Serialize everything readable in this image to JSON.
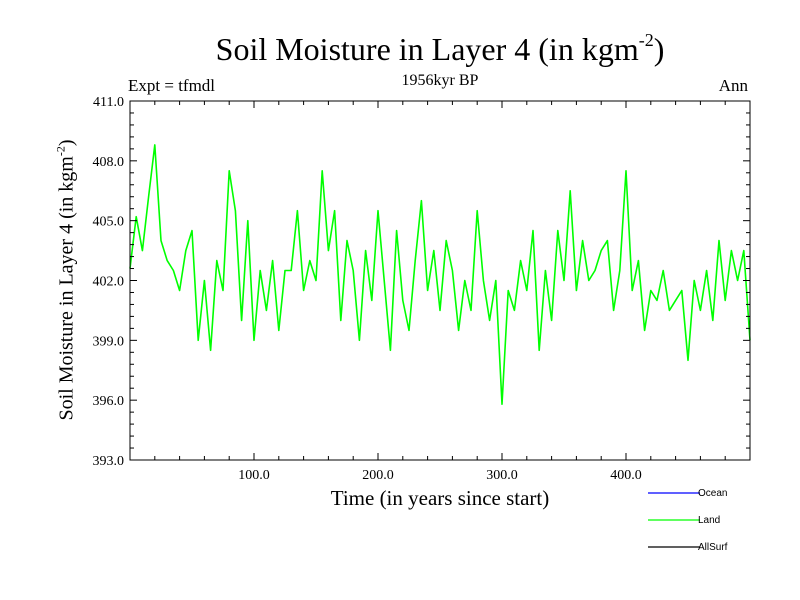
{
  "chart_data": {
    "type": "line",
    "title": "Soil Moisture in Layer 4 (in kgm",
    "title_superscript": "-2",
    "title_suffix": ")",
    "subtitle": "1956kyr BP",
    "left_label": "Expt = tfmdl",
    "right_label": "Ann",
    "xlabel": "Time (in years since start)",
    "ylabel": "Soil Moisture in Layer 4 (in kgm",
    "ylabel_superscript": "-2",
    "ylabel_suffix": ")",
    "xlim": [
      0,
      500
    ],
    "ylim": [
      393.0,
      411.0
    ],
    "xticks": [
      100,
      200,
      300,
      400
    ],
    "xtick_labels": [
      "100.0",
      "200.0",
      "300.0",
      "400.0"
    ],
    "yticks": [
      393,
      396,
      399,
      402,
      405,
      408,
      411
    ],
    "ytick_labels": [
      "393.0",
      "396.0",
      "399.0",
      "402.0",
      "405.0",
      "408.0",
      "411.0"
    ],
    "legend_position": "bottom-right",
    "series": [
      {
        "name": "Ocean",
        "color": "#0000ff",
        "x": [],
        "values": []
      },
      {
        "name": "Land",
        "color": "#00ff00",
        "x": [
          0,
          5,
          10,
          15,
          20,
          25,
          30,
          35,
          40,
          45,
          50,
          55,
          60,
          65,
          70,
          75,
          80,
          85,
          90,
          95,
          100,
          105,
          110,
          115,
          120,
          125,
          130,
          135,
          140,
          145,
          150,
          155,
          160,
          165,
          170,
          175,
          180,
          185,
          190,
          195,
          200,
          205,
          210,
          215,
          220,
          225,
          230,
          235,
          240,
          245,
          250,
          255,
          260,
          265,
          270,
          275,
          280,
          285,
          290,
          295,
          300,
          305,
          310,
          315,
          320,
          325,
          330,
          335,
          340,
          345,
          350,
          355,
          360,
          365,
          370,
          375,
          380,
          385,
          390,
          395,
          400,
          405,
          410,
          415,
          420,
          425,
          430,
          435,
          440,
          445,
          450,
          455,
          460,
          465,
          470,
          475,
          480,
          485,
          490,
          495,
          500
        ],
        "values": [
          402.6,
          405.2,
          403.5,
          406.2,
          408.8,
          404.0,
          403.0,
          402.5,
          401.5,
          403.5,
          404.5,
          399.0,
          402.0,
          398.5,
          403.0,
          401.5,
          407.5,
          405.5,
          400.0,
          405.0,
          399.0,
          402.5,
          400.5,
          403.0,
          399.5,
          402.5,
          402.5,
          405.5,
          401.5,
          403.0,
          402.0,
          407.5,
          403.5,
          405.5,
          400.0,
          404.0,
          402.5,
          399.0,
          403.5,
          401.0,
          405.5,
          402.0,
          398.5,
          404.5,
          401.0,
          399.5,
          403.0,
          406.0,
          401.5,
          403.5,
          400.5,
          404.0,
          402.5,
          399.5,
          402.0,
          400.5,
          405.5,
          402.0,
          400.0,
          402.0,
          395.8,
          401.5,
          400.5,
          403.0,
          401.5,
          404.5,
          398.5,
          402.5,
          400.0,
          404.5,
          402.0,
          406.5,
          401.5,
          404.0,
          402.0,
          402.5,
          403.5,
          404.0,
          400.5,
          402.5,
          407.5,
          401.5,
          403.0,
          399.5,
          401.5,
          401.0,
          402.5,
          400.5,
          401.0,
          401.5,
          398.0,
          402.0,
          400.5,
          402.5,
          400.0,
          404.0,
          401.0,
          403.5,
          402.0,
          403.5,
          399.0
        ]
      },
      {
        "name": "AllSurf",
        "color": "#000000",
        "x": [],
        "values": []
      }
    ]
  }
}
